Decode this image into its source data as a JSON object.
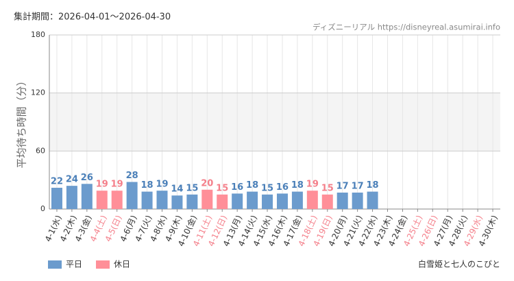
{
  "chart_data": {
    "type": "bar",
    "period": "集計期間：2026-04-01～2026-04-30",
    "source": "ディズニーリアル https://disneyreal.asumirai.info",
    "y_label": "平均待ち時間（分）",
    "attraction": "白雪姫と七人のこびと",
    "categories": [
      "4-1(水)",
      "4-2(木)",
      "4-3(金)",
      "4-4(土)",
      "4-5(日)",
      "4-6(月)",
      "4-7(火)",
      "4-8(水)",
      "4-9(木)",
      "4-10(金)",
      "4-11(土)",
      "4-12(日)",
      "4-13(月)",
      "4-14(火)",
      "4-15(水)",
      "4-16(木)",
      "4-17(金)",
      "4-18(土)",
      "4-19(日)",
      "4-20(月)",
      "4-21(火)",
      "4-22(水)",
      "4-23(木)",
      "4-24(金)",
      "4-25(土)",
      "4-26(日)",
      "4-27(月)",
      "4-28(火)",
      "4-29(水)",
      "4-30(木)"
    ],
    "category_colors": [
      "#333",
      "#333",
      "#333",
      "#f47f8a",
      "#f47f8a",
      "#333",
      "#333",
      "#333",
      "#333",
      "#333",
      "#f47f8a",
      "#f47f8a",
      "#333",
      "#333",
      "#333",
      "#333",
      "#333",
      "#f47f8a",
      "#f47f8a",
      "#333",
      "#333",
      "#333",
      "#333",
      "#333",
      "#f47f8a",
      "#f47f8a",
      "#333",
      "#333",
      "#f47f8a",
      "#333"
    ],
    "series": [
      {
        "name": "平日",
        "color": "#6b9bcd",
        "label_color": "#4a7fb8",
        "values": [
          22,
          24,
          26,
          null,
          null,
          28,
          18,
          19,
          14,
          15,
          null,
          null,
          16,
          18,
          15,
          16,
          18,
          null,
          null,
          17,
          17,
          18,
          null,
          null,
          null,
          null,
          null,
          null,
          null,
          null
        ]
      },
      {
        "name": "休日",
        "color": "#ff8f98",
        "label_color": "#f47f8a",
        "values": [
          null,
          null,
          null,
          19,
          19,
          null,
          null,
          null,
          null,
          null,
          20,
          15,
          null,
          null,
          null,
          null,
          null,
          19,
          15,
          null,
          null,
          null,
          null,
          null,
          null,
          null,
          null,
          null,
          null,
          null
        ]
      }
    ],
    "ylim": [
      0,
      180
    ],
    "yticks": [
      0,
      60,
      120,
      180
    ],
    "grid": true
  }
}
